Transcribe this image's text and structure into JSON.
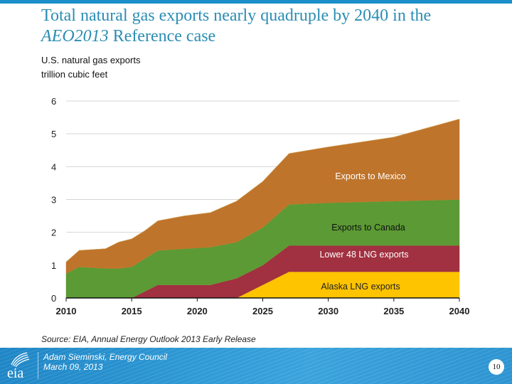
{
  "slide": {
    "title_line1": "Total natural gas exports nearly quadruple by 2040 in the",
    "title_line2_italic": "AEO2013",
    "title_line2_rest": " Reference case",
    "subtitle_line1": "U.S. natural gas exports",
    "subtitle_line2": "trillion cubic feet",
    "source": "Source:  EIA, Annual Energy Outlook 2013 Early Release",
    "footer": {
      "logo_text": "eia",
      "presenter": "Adam Sieminski, Energy Council",
      "date": "March 09, 2013",
      "page_number": "10"
    }
  },
  "chart_data": {
    "type": "area",
    "stacked": true,
    "title": "Total natural gas exports nearly quadruple by 2040 in the AEO2013 Reference case",
    "xlabel": "",
    "ylabel": "trillion cubic feet",
    "xlim": [
      2010,
      2040
    ],
    "ylim": [
      0,
      6
    ],
    "xticks": [
      "2010",
      "2015",
      "2020",
      "2025",
      "2030",
      "2035",
      "2040"
    ],
    "yticks": [
      "0",
      "1",
      "2",
      "3",
      "4",
      "5",
      "6"
    ],
    "grid": true,
    "x": [
      2010,
      2011,
      2013,
      2014,
      2015,
      2016,
      2017,
      2019,
      2021,
      2023,
      2025,
      2027,
      2030,
      2035,
      2040
    ],
    "series": [
      {
        "name": "Alaska LNG exports",
        "color": "#fec400",
        "label_color": "#222222",
        "values": [
          0,
          0,
          0,
          0,
          0,
          0,
          0,
          0,
          0,
          0,
          0.4,
          0.8,
          0.8,
          0.8,
          0.8
        ]
      },
      {
        "name": "Lower 48 LNG exports",
        "color": "#a13040",
        "label_color": "#ffffff",
        "values": [
          0,
          0,
          0,
          0,
          0,
          0.2,
          0.4,
          0.4,
          0.4,
          0.6,
          0.6,
          0.8,
          0.8,
          0.8,
          0.8
        ]
      },
      {
        "name": "Exports to Canada",
        "color": "#5b9a34",
        "label_color": "#111111",
        "values": [
          0.75,
          0.95,
          0.9,
          0.9,
          0.95,
          1.0,
          1.05,
          1.1,
          1.15,
          1.1,
          1.15,
          1.25,
          1.3,
          1.35,
          1.4
        ]
      },
      {
        "name": "Exports to Mexico",
        "color": "#bf742b",
        "label_color": "#ffffff",
        "values": [
          0.35,
          0.5,
          0.6,
          0.8,
          0.85,
          0.85,
          0.9,
          1.0,
          1.05,
          1.25,
          1.4,
          1.55,
          1.7,
          1.95,
          2.45
        ]
      }
    ],
    "annotations": [
      {
        "text": "Exports to Mexico",
        "series": "Exports to Mexico"
      },
      {
        "text": "Exports to Canada",
        "series": "Exports to Canada"
      },
      {
        "text": "Lower 48 LNG exports",
        "series": "Lower 48 LNG exports"
      },
      {
        "text": "Alaska LNG exports",
        "series": "Alaska LNG exports"
      }
    ],
    "legend": "inline-labels-right"
  }
}
